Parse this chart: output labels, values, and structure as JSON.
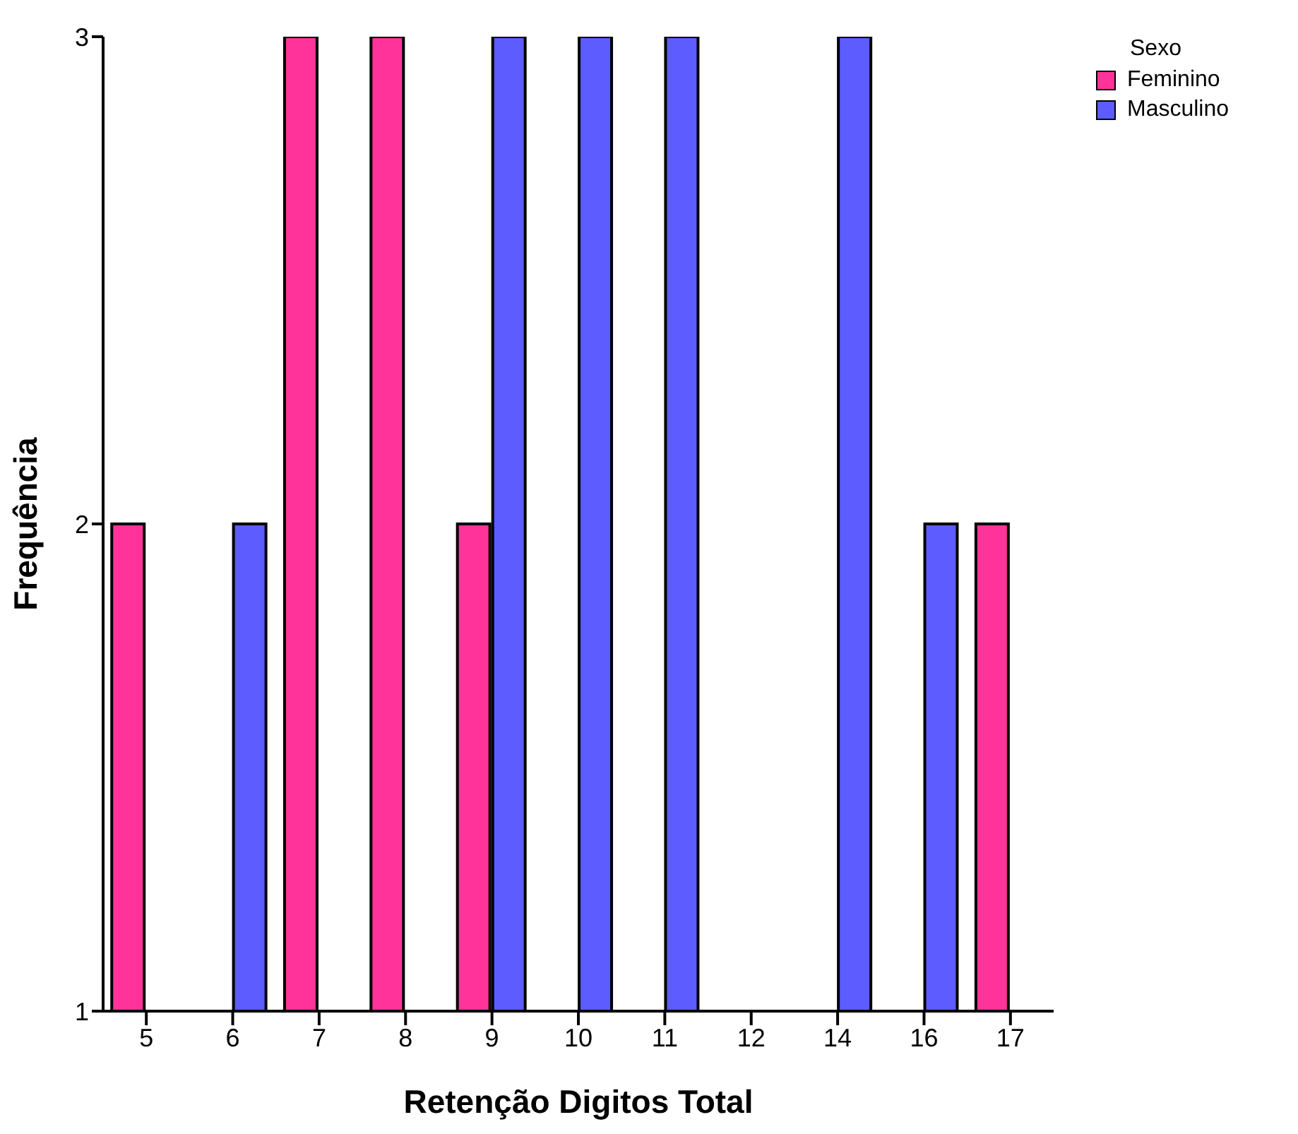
{
  "chart_data": {
    "type": "bar",
    "xlabel": "Retenção Digitos Total",
    "ylabel": "Frequência",
    "legend_title": "Sexo",
    "categories": [
      "5",
      "6",
      "7",
      "8",
      "9",
      "10",
      "11",
      "12",
      "14",
      "16",
      "17"
    ],
    "series": [
      {
        "name": "Feminino",
        "color": "#ff3399",
        "values": [
          2,
          1,
          3,
          3,
          2,
          1,
          1,
          1,
          1,
          1,
          2
        ]
      },
      {
        "name": "Masculino",
        "color": "#5c5cff",
        "values": [
          1,
          2,
          1,
          1,
          3,
          3,
          3,
          1,
          3,
          2,
          1
        ]
      }
    ],
    "ylim": [
      1,
      3
    ],
    "yticks": [
      1,
      2,
      3
    ],
    "grid": false,
    "legend": "top right"
  }
}
